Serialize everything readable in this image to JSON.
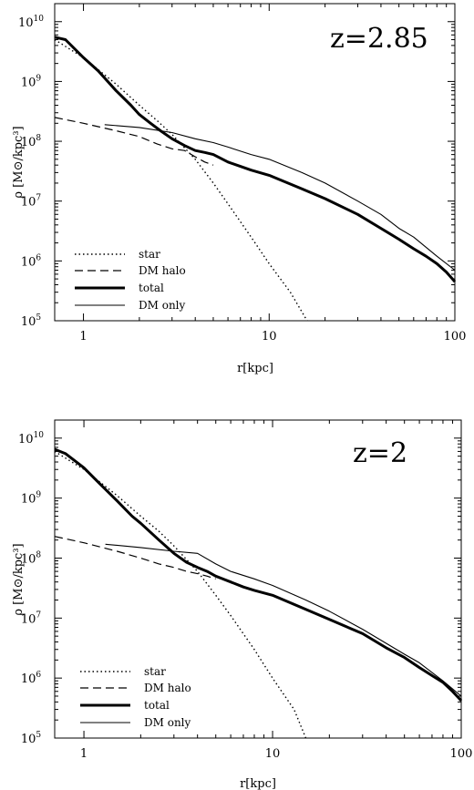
{
  "chart_data": [
    {
      "type": "line",
      "title": "",
      "annotation": "z=2.85",
      "xlabel": "r[kpc]",
      "ylabel": "ρ [M⊙/kpc³]",
      "xscale": "log",
      "yscale": "log",
      "xlim": [
        0.7,
        100
      ],
      "ylim": [
        100000,
        20000000000
      ],
      "xticks": [
        {
          "v": 1,
          "label": "1"
        },
        {
          "v": 10,
          "label": "10"
        },
        {
          "v": 100,
          "label": "100"
        }
      ],
      "yticks": [
        {
          "v": 100000,
          "m": "5"
        },
        {
          "v": 1000000,
          "m": "6"
        },
        {
          "v": 10000000,
          "m": "7"
        },
        {
          "v": 100000000,
          "m": "8"
        },
        {
          "v": 1000000000,
          "m": "9"
        },
        {
          "v": 10000000000,
          "m": "10"
        }
      ],
      "legend_position": "bottom-left",
      "series": [
        {
          "name": "star",
          "style": "dotted",
          "x": [
            0.7,
            1.0,
            1.5,
            2.0,
            2.5,
            3.0,
            4.0,
            5.0,
            6.0,
            8.0,
            10.0,
            13.0,
            16.0
          ],
          "y": [
            5000000000,
            2500000000,
            900000000,
            400000000,
            220000000,
            130000000,
            50000000,
            20000000,
            9000000,
            2500000,
            900000,
            300000,
            100000
          ]
        },
        {
          "name": "DM halo",
          "style": "dashed",
          "x": [
            0.7,
            1.0,
            1.5,
            2.0,
            2.5,
            3.0,
            3.5,
            4.0,
            4.5,
            5.0
          ],
          "y": [
            250000000,
            200000000,
            150000000,
            120000000,
            90000000,
            75000000,
            70000000,
            55000000,
            45000000,
            40000000
          ]
        },
        {
          "name": "total",
          "style": "thick",
          "x": [
            0.7,
            0.8,
            1.0,
            1.2,
            1.5,
            1.8,
            2.0,
            2.3,
            2.6,
            3.0,
            3.5,
            4.0,
            4.5,
            5.0,
            6.0,
            7.0,
            8.0,
            10.0,
            15.0,
            20.0,
            30.0,
            40.0,
            50.0,
            60.0,
            70.0,
            80.0,
            90.0,
            100.0
          ],
          "y": [
            5500000000,
            5000000000,
            2500000000,
            1500000000,
            700000000,
            400000000,
            280000000,
            200000000,
            150000000,
            110000000,
            85000000,
            70000000,
            65000000,
            60000000,
            45000000,
            38000000,
            33000000,
            27000000,
            16000000,
            11000000,
            6000000,
            3500000,
            2300000,
            1600000,
            1200000,
            900000,
            650000,
            450000
          ]
        },
        {
          "name": "DM only",
          "style": "thin",
          "x": [
            1.3,
            2.0,
            3.0,
            4.0,
            5.0,
            6.0,
            8.0,
            10.0,
            15.0,
            20.0,
            30.0,
            40.0,
            50.0,
            60.0,
            80.0,
            100.0
          ],
          "y": [
            190000000,
            170000000,
            140000000,
            110000000,
            95000000,
            80000000,
            60000000,
            50000000,
            30000000,
            20000000,
            10000000,
            6000000,
            3500000,
            2500000,
            1200000,
            700000
          ]
        }
      ]
    },
    {
      "type": "line",
      "title": "",
      "annotation": "z=2",
      "xlabel": "r[kpc]",
      "ylabel": "ρ [M⊙/kpc³]",
      "xscale": "log",
      "yscale": "log",
      "xlim": [
        0.7,
        100
      ],
      "ylim": [
        100000,
        20000000000
      ],
      "xticks": [
        {
          "v": 1,
          "label": "1"
        },
        {
          "v": 10,
          "label": "10"
        },
        {
          "v": 100,
          "label": "100"
        }
      ],
      "yticks": [
        {
          "v": 100000,
          "m": "5"
        },
        {
          "v": 1000000,
          "m": "6"
        },
        {
          "v": 10000000,
          "m": "7"
        },
        {
          "v": 100000000,
          "m": "8"
        },
        {
          "v": 1000000000,
          "m": "9"
        },
        {
          "v": 10000000000,
          "m": "10"
        }
      ],
      "legend_position": "bottom-left",
      "series": [
        {
          "name": "star",
          "style": "dotted",
          "x": [
            0.7,
            1.0,
            1.5,
            2.0,
            2.5,
            3.0,
            4.0,
            5.0,
            6.0,
            8.0,
            10.0,
            13.0,
            15.0
          ],
          "y": [
            6000000000,
            3000000000,
            1100000000,
            500000000,
            280000000,
            160000000,
            60000000,
            24000000,
            11000000,
            3000000,
            1000000,
            300000,
            100000
          ]
        },
        {
          "name": "DM halo",
          "style": "dashed",
          "x": [
            0.7,
            1.0,
            1.5,
            2.0,
            2.5,
            3.0,
            3.5,
            4.0,
            4.5,
            5.0
          ],
          "y": [
            230000000,
            180000000,
            130000000,
            100000000,
            80000000,
            70000000,
            60000000,
            55000000,
            50000000,
            45000000
          ]
        },
        {
          "name": "total",
          "style": "thick",
          "x": [
            0.7,
            0.8,
            1.0,
            1.2,
            1.5,
            1.8,
            2.0,
            2.5,
            3.0,
            3.5,
            4.0,
            4.5,
            5.0,
            6.0,
            7.0,
            8.0,
            10.0,
            15.0,
            20.0,
            30.0,
            40.0,
            50.0,
            60.0,
            70.0,
            80.0,
            90.0,
            100.0
          ],
          "y": [
            6500000000,
            5500000000,
            3200000000,
            1800000000,
            900000000,
            500000000,
            380000000,
            200000000,
            120000000,
            85000000,
            70000000,
            60000000,
            50000000,
            40000000,
            33000000,
            29000000,
            24000000,
            14000000,
            9500000,
            5500000,
            3200000,
            2200000,
            1500000,
            1100000,
            850000,
            600000,
            420000
          ]
        },
        {
          "name": "DM only",
          "style": "thin",
          "x": [
            1.3,
            2.0,
            3.0,
            4.0,
            5.0,
            6.0,
            8.0,
            10.0,
            15.0,
            20.0,
            30.0,
            40.0,
            50.0,
            60.0,
            80.0,
            100.0
          ],
          "y": [
            170000000,
            150000000,
            130000000,
            120000000,
            80000000,
            60000000,
            45000000,
            35000000,
            20000000,
            13000000,
            6500000,
            3800000,
            2500000,
            1800000,
            900000,
            500000
          ]
        }
      ]
    }
  ]
}
